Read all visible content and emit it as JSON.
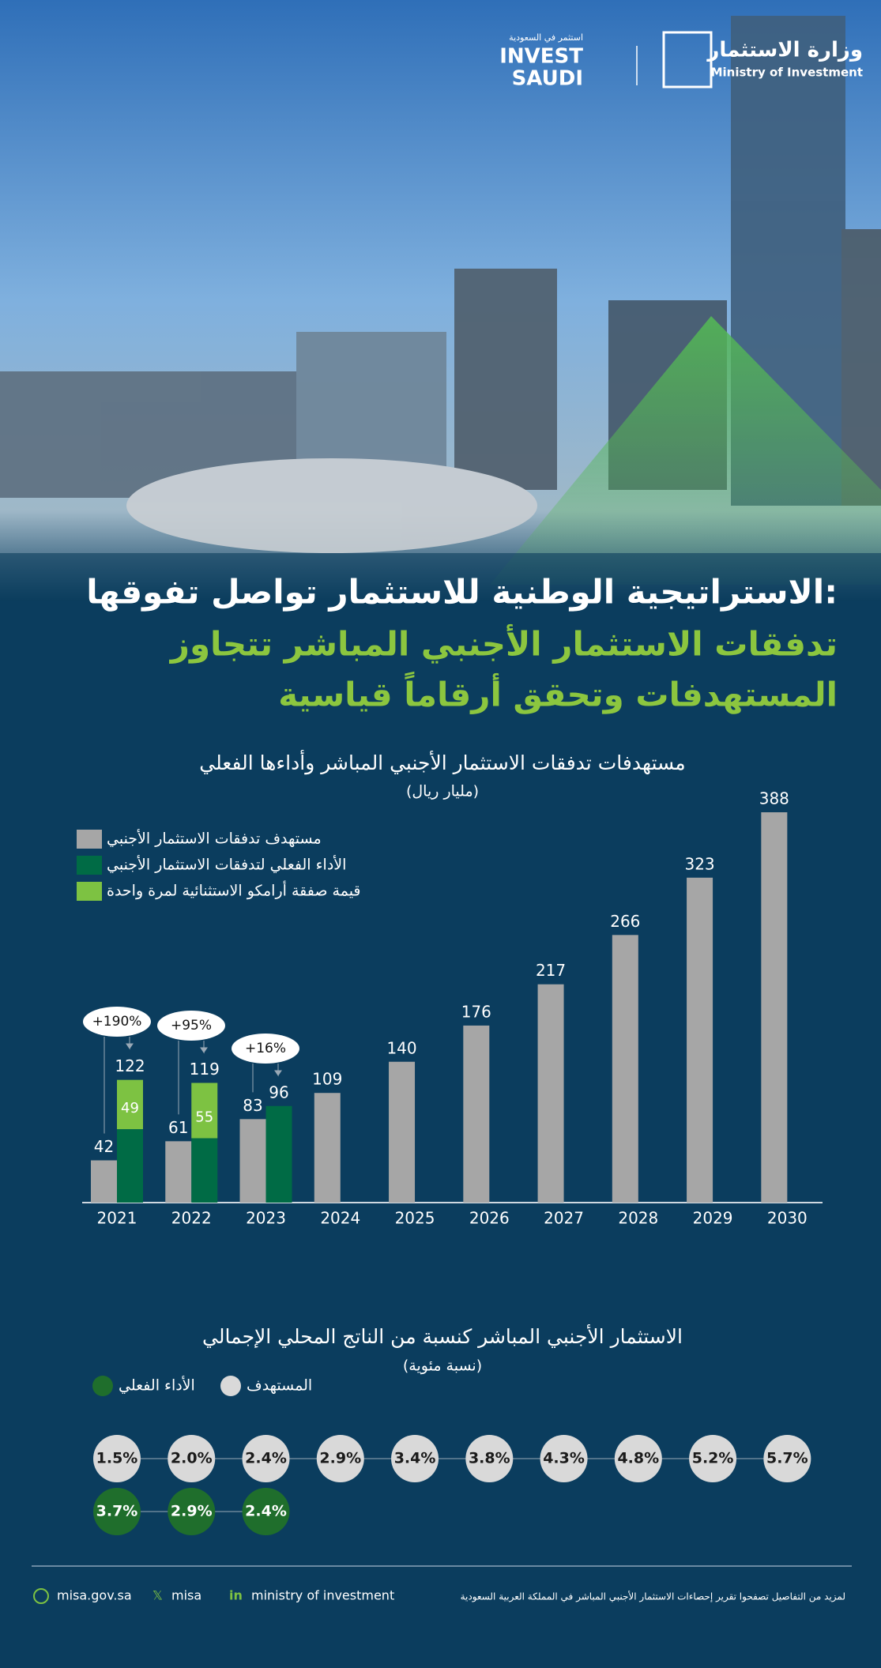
{
  "header": {
    "invest_logo": [
      "استثمر في السعودية",
      "INVEST",
      "SAUDI"
    ],
    "ministry_logo": [
      "وزارة الاستثمار",
      "Ministry of Investment"
    ]
  },
  "headline": [
    "الاستراتيجية الوطنية للاستثمار تواصل تفوقها:",
    "تدفقات الاستثمار الأجنبي المباشر تتجاوز",
    "المستهدفات وتحقق أرقاماً قياسية"
  ],
  "chart_data": [
    {
      "type": "bar",
      "title": "مستهدفات تدفقات الاستثمار الأجنبي المباشر وأداءها الفعلي",
      "subtitle": "(مليار ريال)",
      "categories": [
        "2021",
        "2022",
        "2023",
        "2024",
        "2025",
        "2026",
        "2027",
        "2028",
        "2029",
        "2030"
      ],
      "series": [
        {
          "name": "مستهدف تدفقات الاستثمار الأجنبي",
          "color": "#a6a6a6",
          "values": [
            42,
            61,
            83,
            109,
            140,
            176,
            217,
            266,
            323,
            388
          ]
        },
        {
          "name": "الأداء الفعلي لتدفقات الاستثمار الأجنبي",
          "color": "#006b45",
          "values": [
            73,
            64,
            96,
            null,
            null,
            null,
            null,
            null,
            null,
            null
          ]
        },
        {
          "name": "قيمة صفقة أرامكو الاستثنائية لمرة واحدة",
          "color": "#7dc242",
          "values": [
            49,
            55,
            null,
            null,
            null,
            null,
            null,
            null,
            null,
            null
          ]
        }
      ],
      "totals": [
        122,
        119,
        96,
        null,
        null,
        null,
        null,
        null,
        null,
        null
      ],
      "annotations": [
        "+190%",
        "+95%",
        "+16%"
      ]
    },
    {
      "type": "dot",
      "title": "الاستثمار الأجنبي المباشر كنسبة من الناتج المحلي الإجمالي",
      "subtitle": "(نسبة مئوية)",
      "categories": [
        "2021",
        "2022",
        "2023",
        "2024",
        "2025",
        "2026",
        "2027",
        "2028",
        "2029",
        "2030"
      ],
      "series": [
        {
          "name": "المستهدف",
          "color": "#d9d9d9",
          "values": [
            1.5,
            2.0,
            2.4,
            2.9,
            3.4,
            3.8,
            4.3,
            4.8,
            5.2,
            5.7
          ],
          "value_labels": [
            "1.5%",
            "2.0%",
            "2.4%",
            "2.9%",
            "3.4%",
            "3.8%",
            "4.3%",
            "4.8%",
            "5.2%",
            "5.7%"
          ]
        },
        {
          "name": "الأداء الفعلي",
          "color": "#1f6e2c",
          "values": [
            3.7,
            2.9,
            2.4,
            null,
            null,
            null,
            null,
            null,
            null,
            null
          ],
          "value_labels": [
            "3.7%",
            "2.9%",
            "2.4%",
            null,
            null,
            null,
            null,
            null,
            null,
            null
          ]
        }
      ]
    }
  ],
  "footer": {
    "links": [
      "misa.gov.sa",
      "misa",
      "ministry of investment"
    ],
    "note": "لمزيد من التفاصيل تصفحوا تقرير إحصاءات الاستثمار الأجنبي المباشر في المملكة العربية السعودية"
  }
}
